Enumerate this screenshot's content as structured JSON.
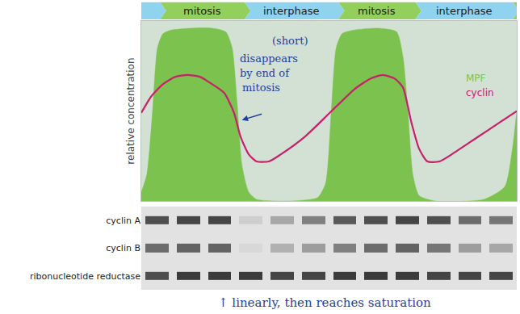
{
  "chart_data": [
    {
      "type": "line",
      "y_label": "relative concentration",
      "xlim": [
        0,
        100
      ],
      "ylim": [
        0,
        1
      ],
      "xticks": [],
      "yticks": [],
      "tick_labels": false,
      "grid": false,
      "phases": [
        {
          "label": null,
          "start": 0,
          "end": 5,
          "color": "#8fd3ef"
        },
        {
          "label": "mitosis",
          "start": 5,
          "end": 27.5,
          "color": "#92cf5c"
        },
        {
          "label": "interphase",
          "start": 27.5,
          "end": 52.5,
          "color": "#8fd3ef"
        },
        {
          "label": "mitosis",
          "start": 52.5,
          "end": 73,
          "color": "#92cf5c"
        },
        {
          "label": "interphase",
          "start": 73,
          "end": 99,
          "color": "#8fd3ef"
        },
        {
          "label": null,
          "start": 99,
          "end": 100,
          "color": "#92cf5c"
        }
      ],
      "series": [
        {
          "name": "MPF",
          "type": "area",
          "color": "#7cc24e",
          "x": [
            0,
            1.5,
            3,
            4.3,
            5.8,
            8,
            13.4,
            18.8,
            22.5,
            24.2,
            25.5,
            26.8,
            28.6,
            30.7,
            39.4,
            47,
            49.1,
            50.6,
            51.9,
            53.5,
            56.7,
            63.2,
            68,
            69.7,
            71,
            72.3,
            74,
            78.4,
            91.3,
            96.8,
            98.9,
            100
          ],
          "values": [
            0.05,
            0.15,
            0.5,
            0.85,
            0.93,
            0.95,
            0.96,
            0.96,
            0.94,
            0.85,
            0.55,
            0.2,
            0.05,
            0.01,
            0,
            0.02,
            0.1,
            0.5,
            0.85,
            0.93,
            0.95,
            0.96,
            0.94,
            0.8,
            0.5,
            0.15,
            0.03,
            0,
            0.01,
            0.08,
            0.3,
            0.5
          ]
        },
        {
          "name": "cyclin",
          "type": "line",
          "color": "#c8206a",
          "x": [
            0,
            2.6,
            5.8,
            9.1,
            12.3,
            15.6,
            18.8,
            22.1,
            24.7,
            26.4,
            28.6,
            30.7,
            34,
            37.2,
            43.7,
            50.2,
            56.7,
            61,
            64.3,
            67.5,
            69.7,
            71.9,
            74,
            76.2,
            79.4,
            82.7,
            89.2,
            95.7,
            100
          ],
          "values": [
            0.49,
            0.58,
            0.65,
            0.69,
            0.7,
            0.69,
            0.65,
            0.6,
            0.49,
            0.36,
            0.26,
            0.22,
            0.22,
            0.26,
            0.36,
            0.49,
            0.62,
            0.68,
            0.7,
            0.68,
            0.63,
            0.44,
            0.29,
            0.22,
            0.22,
            0.26,
            0.35,
            0.44,
            0.5
          ]
        }
      ],
      "annotations": [
        "(short)",
        "disappears",
        "by end of",
        "mitosis"
      ]
    },
    {
      "type": "heatmap",
      "categories": [
        "cyclin A",
        "cyclin B",
        "ribonucleotide reductase"
      ],
      "cells": [
        [
          0.75,
          0.8,
          0.8,
          0.1,
          0.3,
          0.5,
          0.7,
          0.75,
          0.8,
          0.75,
          0.6,
          0.55
        ],
        [
          0.6,
          0.65,
          0.65,
          0.05,
          0.25,
          0.35,
          0.5,
          0.6,
          0.65,
          0.55,
          0.35,
          0.3
        ],
        [
          0.75,
          0.85,
          0.85,
          0.85,
          0.8,
          0.8,
          0.85,
          0.85,
          0.85,
          0.8,
          0.8,
          0.8
        ]
      ],
      "zlim": [
        0,
        1
      ],
      "tick_labels": "y",
      "annotations": [
        "↑ linearly, then reaches saturation"
      ]
    }
  ]
}
